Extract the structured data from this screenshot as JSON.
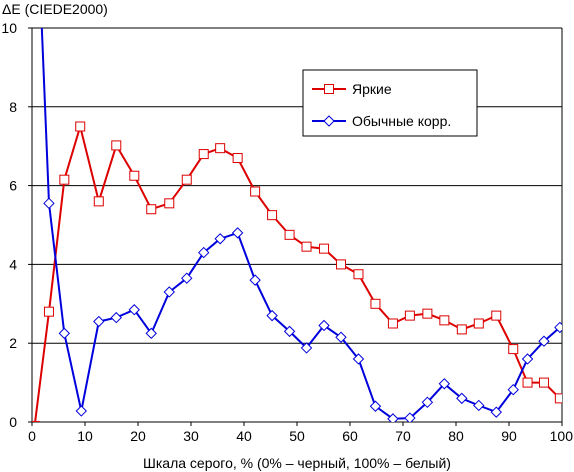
{
  "chart_data": {
    "type": "line",
    "title": "",
    "ylabel": "ΔE (CIEDE2000)",
    "xlabel": "Шкала серого, % (0% – черный, 100% – белый)",
    "xlim": [
      0,
      100
    ],
    "ylim": [
      0,
      10
    ],
    "xticks": [
      0,
      10,
      20,
      30,
      40,
      50,
      60,
      70,
      80,
      90,
      100
    ],
    "yticks": [
      0,
      2,
      4,
      6,
      8,
      10
    ],
    "grid": "horizontal",
    "legend_position": "top-right",
    "series": [
      {
        "name": "Яркие",
        "color": "#dd0000",
        "marker": "square",
        "x": [
          0.5,
          3.2,
          6.1,
          9.1,
          12.6,
          15.9,
          19.3,
          22.5,
          25.9,
          29.2,
          32.4,
          35.5,
          38.8,
          42.1,
          45.3,
          48.6,
          51.8,
          55.1,
          58.3,
          61.6,
          64.8,
          68.1,
          71.3,
          74.6,
          77.8,
          81.1,
          84.3,
          87.6,
          90.8,
          93.5,
          96.6,
          99.6
        ],
        "y": [
          -0.1,
          2.8,
          6.15,
          7.5,
          5.6,
          7.02,
          6.25,
          5.4,
          5.55,
          6.15,
          6.8,
          6.95,
          6.7,
          5.85,
          5.25,
          4.75,
          4.45,
          4.4,
          4.0,
          3.75,
          3.0,
          2.5,
          2.7,
          2.75,
          2.58,
          2.35,
          2.5,
          2.7,
          1.85,
          1.0,
          1.0,
          0.6
        ]
      },
      {
        "name": "Обычные корр.",
        "color": "#0000dd",
        "marker": "diamond",
        "x": [
          1.8,
          3.2,
          6.1,
          9.3,
          12.6,
          15.9,
          19.3,
          22.5,
          25.9,
          29.2,
          32.4,
          35.5,
          38.8,
          42.1,
          45.3,
          48.6,
          51.8,
          55.1,
          58.3,
          61.6,
          64.8,
          68.1,
          71.3,
          74.6,
          77.8,
          81.1,
          84.3,
          87.6,
          90.8,
          93.5,
          96.6,
          99.6
        ],
        "y": [
          10.2,
          5.55,
          2.25,
          0.28,
          2.55,
          2.65,
          2.85,
          2.25,
          3.3,
          3.65,
          4.3,
          4.65,
          4.8,
          3.6,
          2.7,
          2.3,
          1.88,
          2.45,
          2.15,
          1.6,
          0.4,
          0.08,
          0.1,
          0.5,
          0.97,
          0.6,
          0.42,
          0.25,
          0.82,
          1.6,
          2.05,
          2.4
        ]
      }
    ]
  }
}
